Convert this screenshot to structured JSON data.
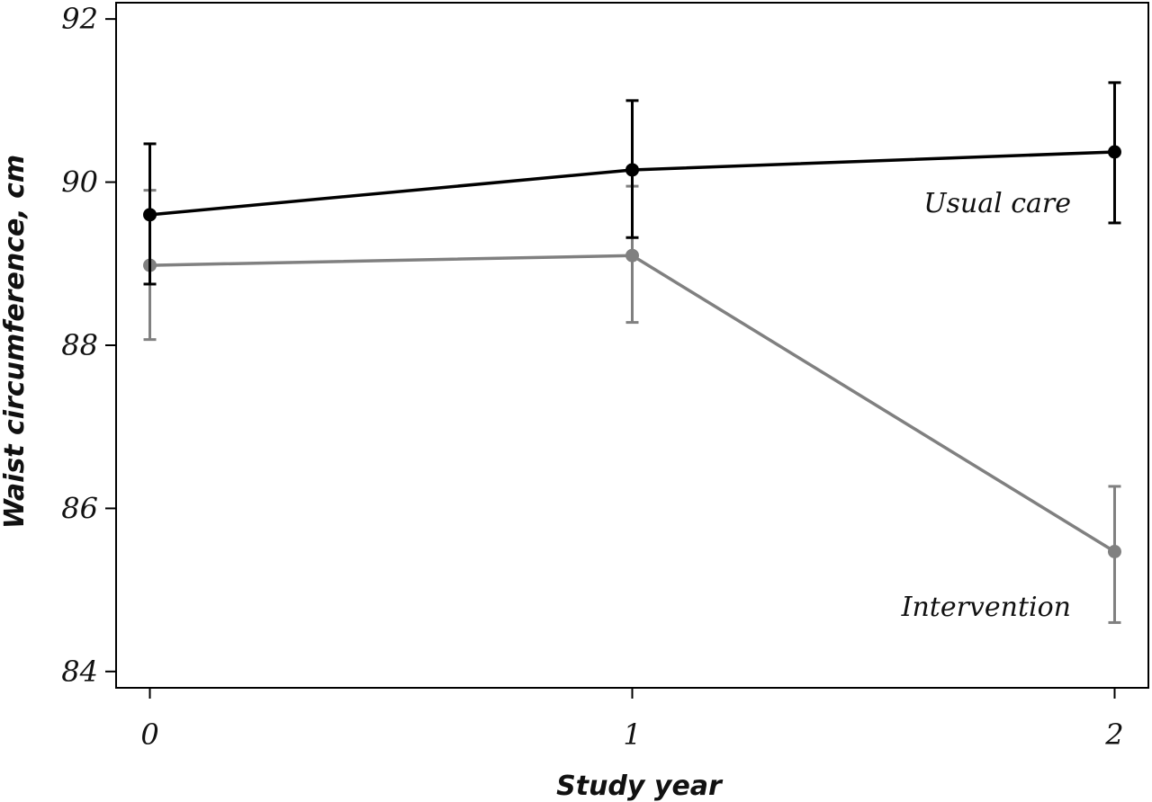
{
  "chart_data": {
    "type": "line",
    "xlabel": "Study year",
    "ylabel": "Waist circumference, cm",
    "x": [
      0,
      1,
      2
    ],
    "xticks": [
      "0",
      "1",
      "2"
    ],
    "yticks": [
      "84",
      "86",
      "88",
      "90",
      "92"
    ],
    "xlim": [
      -0.07,
      2.07
    ],
    "ylim": [
      83.8,
      92.2
    ],
    "grid": false,
    "legend": "none",
    "series": [
      {
        "name": "Usual care",
        "color": "#000000",
        "values": [
          89.6,
          90.15,
          90.37
        ],
        "error_low": [
          88.75,
          89.32,
          89.5
        ],
        "error_high": [
          90.47,
          91.0,
          91.22
        ]
      },
      {
        "name": "Intervention",
        "color": "#808080",
        "values": [
          88.98,
          89.1,
          85.47
        ],
        "error_low": [
          88.07,
          88.28,
          84.6
        ],
        "error_high": [
          89.9,
          89.95,
          86.27
        ]
      }
    ]
  }
}
